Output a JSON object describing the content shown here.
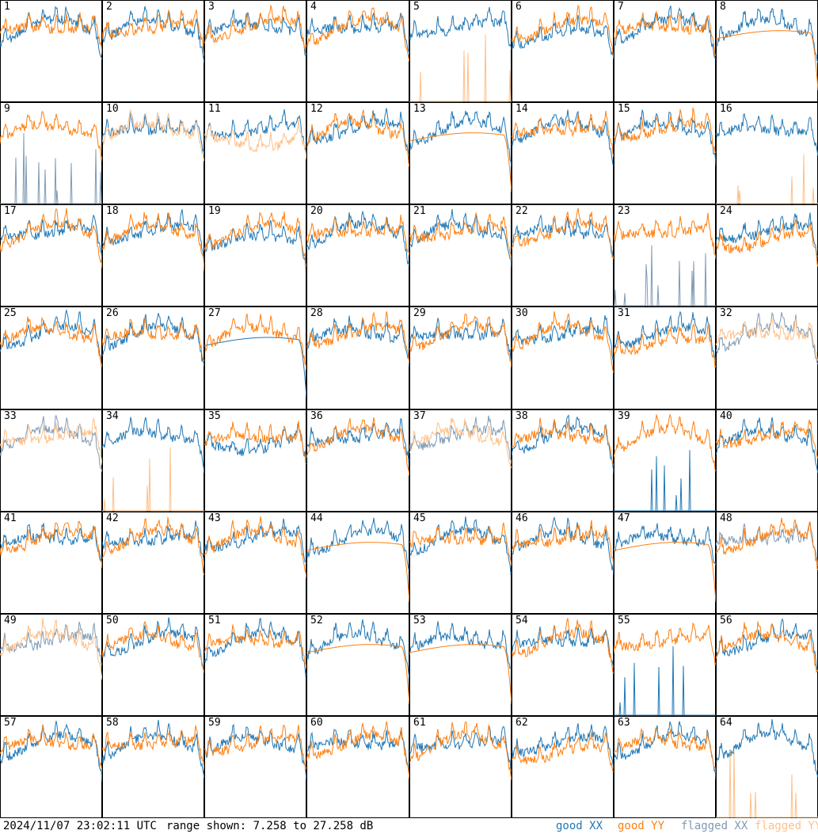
{
  "chart_data": {
    "type": "line",
    "antennas": [
      "1",
      "2",
      "3",
      "4",
      "5",
      "6",
      "7",
      "8",
      "9",
      "10",
      "11",
      "12",
      "13",
      "14",
      "15",
      "16",
      "17",
      "18",
      "19",
      "20",
      "21",
      "22",
      "23",
      "24",
      "25",
      "26",
      "27",
      "28",
      "29",
      "30",
      "31",
      "32",
      "33",
      "34",
      "35",
      "36",
      "37",
      "38",
      "39",
      "40",
      "41",
      "42",
      "43",
      "44",
      "45",
      "46",
      "47",
      "48",
      "49",
      "50",
      "51",
      "52",
      "53",
      "54",
      "55",
      "56",
      "57",
      "58",
      "59",
      "60",
      "61",
      "62",
      "63",
      "64"
    ],
    "ylim": [
      7.258,
      27.258
    ],
    "grid": false,
    "legend_placement": "bottom-right",
    "legend": [
      {
        "name": "good XX",
        "color": "#1f77b4"
      },
      {
        "name": "good YY",
        "color": "#ff7f0e"
      },
      {
        "name": "flagged XX",
        "color": "#7f9ab4"
      },
      {
        "name": "flagged YY",
        "color": "#ffbf87"
      }
    ],
    "panel_styles": {
      "1": "normal",
      "2": "normal",
      "3": "normal",
      "4": "normal",
      "5": "yy_spikes",
      "6": "xx_dip",
      "7": "normal",
      "8": "yy_smooth",
      "9": "xx_flag_spikes",
      "10": "yy_flag",
      "11": "yy_flag_dip",
      "12": "normal",
      "13": "yy_smooth",
      "14": "normal",
      "15": "normal",
      "16": "yy_flag_spikes",
      "17": "normal",
      "18": "normal",
      "19": "xx_dip",
      "20": "normal",
      "21": "normal",
      "22": "normal",
      "23": "xx_flag_spikes",
      "24": "yy_dip",
      "25": "normal",
      "26": "normal",
      "27": "xx_smooth",
      "28": "normal",
      "29": "normal",
      "30": "normal",
      "31": "yy_dip",
      "32": "both_flag",
      "33": "both_flag",
      "34": "yy_spikes",
      "35": "xx_dip",
      "36": "normal",
      "37": "both_flag",
      "38": "normal",
      "39": "xx_spikes",
      "40": "normal",
      "41": "normal",
      "42": "normal",
      "43": "normal",
      "44": "yy_smooth",
      "45": "normal",
      "46": "normal",
      "47": "yy_smooth",
      "48": "xx_flag",
      "49": "both_flag",
      "50": "normal",
      "51": "normal",
      "52": "yy_smooth",
      "53": "yy_smooth",
      "54": "normal",
      "55": "xx_spikes",
      "56": "normal",
      "57": "normal",
      "58": "normal",
      "59": "normal",
      "60": "normal",
      "61": "normal",
      "62": "yy_dip",
      "63": "normal",
      "64": "yy_flag_spikes"
    }
  },
  "footer": {
    "timestamp": "2024/11/07 23:02:11 UTC",
    "range_text": "range shown: 7.258 to 27.258 dB",
    "legend_labels": [
      "good XX",
      "good YY",
      "flagged XX",
      "flagged YY"
    ]
  }
}
